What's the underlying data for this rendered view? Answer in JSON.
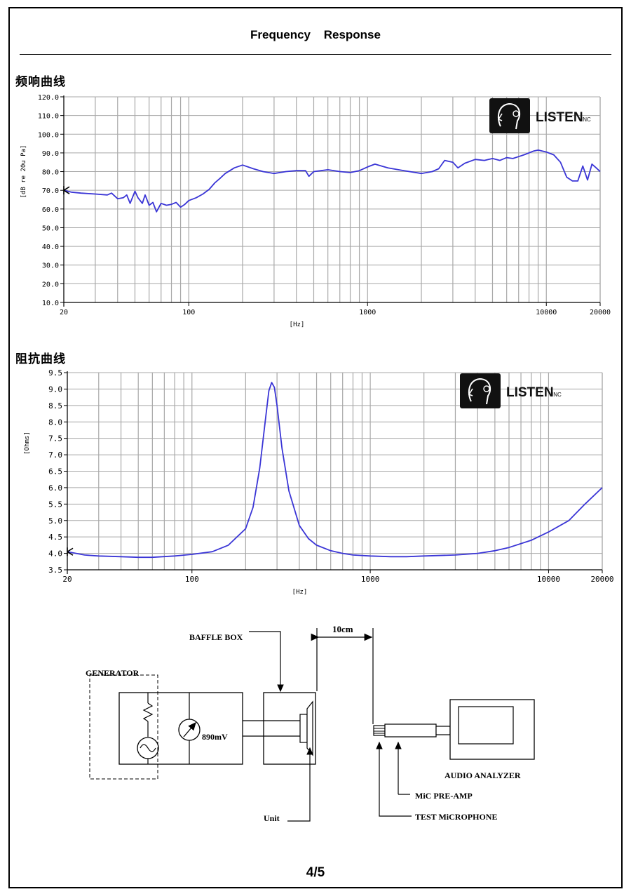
{
  "page": {
    "title": "Frequency    Response",
    "page_number": "4/5",
    "colors": {
      "curve": "#3a35d6",
      "grid": "#a8a8a8",
      "axis": "#000000",
      "logo_bg": "#111111"
    }
  },
  "freq_section": {
    "title": "频响曲线"
  },
  "imp_section": {
    "title": "阻抗曲线"
  },
  "logo": {
    "brand": "LISTEN",
    "suffix": "INC",
    "icon": "head-profile-icon"
  },
  "chart_data": [
    {
      "type": "line",
      "title": "",
      "xlabel": "[Hz]",
      "ylabel": "[dB re 20u Pa]",
      "x_scale": "log",
      "xlim": [
        20,
        20000
      ],
      "ylim": [
        10,
        120
      ],
      "x_ticks": [
        20,
        100,
        1000,
        10000,
        20000
      ],
      "x_tick_labels": [
        "20",
        "100",
        "1000",
        "10000",
        "20000"
      ],
      "y_ticks": [
        10,
        20,
        30,
        40,
        50,
        60,
        70,
        80,
        90,
        100,
        110,
        120
      ],
      "y_tick_labels": [
        "10.0",
        "20.0",
        "30.0",
        "40.0",
        "50.0",
        "60.0",
        "70.0",
        "80.0",
        "90.0",
        "100.0",
        "110.0",
        "120.0"
      ],
      "grid": true,
      "series": [
        {
          "x": [
            20,
            22,
            25,
            30,
            35,
            37,
            40,
            43,
            45,
            47,
            50,
            52,
            55,
            57,
            60,
            63,
            66,
            70,
            75,
            80,
            85,
            90,
            95,
            100,
            110,
            120,
            130,
            140,
            150,
            160,
            180,
            200,
            230,
            260,
            300,
            350,
            400,
            450,
            470,
            500,
            550,
            600,
            700,
            800,
            900,
            1000,
            1100,
            1300,
            1600,
            2000,
            2300,
            2500,
            2700,
            3000,
            3200,
            3500,
            4000,
            4500,
            5000,
            5500,
            6000,
            6500,
            7000,
            7500,
            8000,
            8500,
            9000,
            10000,
            11000,
            12000,
            13000,
            14000,
            15000,
            16000,
            17000,
            18000,
            19000,
            20000
          ],
          "y": [
            70,
            69,
            68.5,
            68,
            67.5,
            68.5,
            65.5,
            66,
            67.5,
            63,
            69.5,
            66,
            63,
            67.5,
            62,
            63.5,
            58.5,
            63,
            62,
            62.5,
            63.5,
            61,
            62.5,
            64.5,
            66,
            68,
            70.5,
            74,
            76.5,
            79,
            82,
            83.5,
            81.5,
            80,
            79,
            80,
            80.5,
            80.5,
            77.5,
            80,
            80.5,
            81,
            80,
            79.5,
            80.5,
            82.5,
            84,
            82,
            80.5,
            79,
            80,
            81.5,
            86,
            85,
            82,
            84.5,
            86.5,
            86,
            87,
            86,
            87.5,
            87,
            88,
            89,
            90,
            91,
            91.5,
            90.5,
            89,
            85,
            77,
            75,
            75,
            83,
            75.5,
            84,
            82,
            80
          ]
        }
      ]
    },
    {
      "type": "line",
      "title": "",
      "xlabel": "[Hz]",
      "ylabel": "[Ohms]",
      "x_scale": "log",
      "xlim": [
        20,
        20000
      ],
      "ylim": [
        3.5,
        9.5
      ],
      "x_ticks": [
        20,
        100,
        1000,
        10000,
        20000
      ],
      "x_tick_labels": [
        "20",
        "100",
        "1000",
        "10000",
        "20000"
      ],
      "y_ticks": [
        3.5,
        4.0,
        4.5,
        5.0,
        5.5,
        6.0,
        6.5,
        7.0,
        7.5,
        8.0,
        8.5,
        9.0,
        9.5
      ],
      "y_tick_labels": [
        "3.5",
        "4.0",
        "4.5",
        "5.0",
        "5.5",
        "6.0",
        "6.5",
        "7.0",
        "7.5",
        "8.0",
        "8.5",
        "9.0",
        "9.5"
      ],
      "grid": true,
      "series": [
        {
          "x": [
            20,
            25,
            30,
            40,
            50,
            60,
            80,
            100,
            130,
            160,
            200,
            220,
            240,
            260,
            270,
            280,
            290,
            300,
            320,
            350,
            400,
            450,
            500,
            600,
            700,
            800,
            1000,
            1300,
            1600,
            2000,
            3000,
            4000,
            5000,
            6000,
            8000,
            10000,
            13000,
            16000,
            20000
          ],
          "y": [
            4.05,
            3.95,
            3.92,
            3.9,
            3.88,
            3.88,
            3.92,
            3.97,
            4.05,
            4.25,
            4.75,
            5.4,
            6.6,
            8.2,
            8.95,
            9.2,
            9.05,
            8.5,
            7.2,
            5.9,
            4.85,
            4.45,
            4.25,
            4.08,
            4.0,
            3.95,
            3.92,
            3.9,
            3.9,
            3.92,
            3.95,
            4.0,
            4.08,
            4.18,
            4.4,
            4.65,
            5.0,
            5.5,
            6.0
          ]
        }
      ]
    }
  ],
  "test_setup": {
    "generator_label": "GENERATOR",
    "voltage_label": "890mV",
    "baffle_label": "BAFFLE BOX",
    "distance_label": "10cm",
    "unit_label": "Unit",
    "analyzer_label": "AUDIO ANALYZER",
    "preamp_label": "MiC PRE-AMP",
    "mic_label": "TEST MiCROPHONE"
  }
}
